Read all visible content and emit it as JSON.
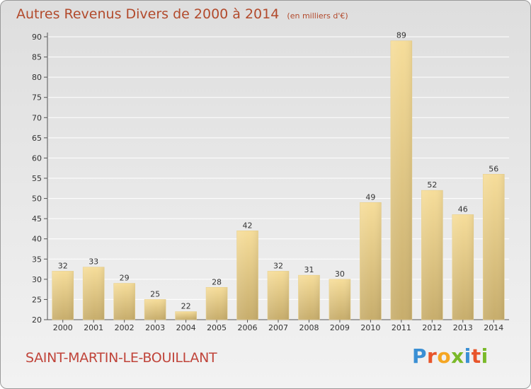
{
  "header": {
    "title": "Autres Revenus Divers de 2000 à 2014",
    "unit": "(en milliers d'€)"
  },
  "footer": {
    "commune": "SAINT-MARTIN-LE-BOUILLANT",
    "brand": "Proxiti",
    "brand_colors": [
      "#3a8fd4",
      "#e8552b",
      "#f5a623",
      "#7ab929",
      "#3a8fd4",
      "#e8552b",
      "#7ab929"
    ]
  },
  "colors": {
    "title": "#b24a2c",
    "bar_light": "#f6dd9a",
    "bar_dark": "#c7ad6c",
    "grid": "#ffffff"
  },
  "chart_data": {
    "type": "bar",
    "categories": [
      "2000",
      "2001",
      "2002",
      "2003",
      "2004",
      "2005",
      "2006",
      "2007",
      "2008",
      "2009",
      "2010",
      "2011",
      "2012",
      "2013",
      "2014"
    ],
    "values": [
      32,
      33,
      29,
      25,
      22,
      28,
      42,
      32,
      31,
      30,
      49,
      89,
      52,
      46,
      56
    ],
    "ylim": [
      20,
      90
    ],
    "yticks": [
      20,
      25,
      30,
      35,
      40,
      45,
      50,
      55,
      60,
      65,
      70,
      75,
      80,
      85,
      90
    ],
    "grid": true,
    "data_labels": true
  }
}
